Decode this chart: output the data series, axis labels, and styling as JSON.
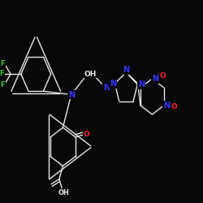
{
  "background_color": "#080808",
  "bond_color": "#e8e8e8",
  "atom_colors": {
    "N": "#3333ff",
    "O": "#ff2222",
    "F": "#33cc33",
    "C": "#e8e8e8"
  },
  "figsize": [
    2.5,
    2.5
  ],
  "dpi": 100
}
